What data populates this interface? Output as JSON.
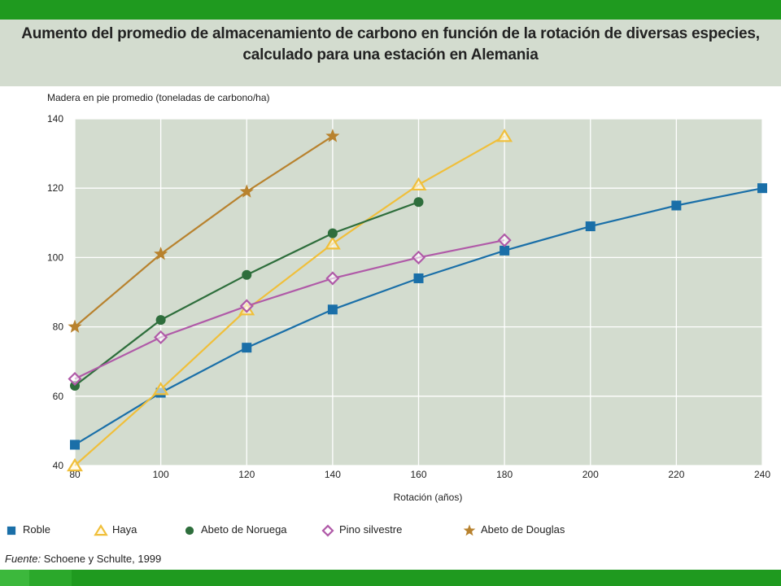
{
  "header": {
    "title_line1": "Aumento del promedio de almacenamiento de carbono en función de la rotación de diversas especies,",
    "title_line2": "calculado para una estación en Alemania"
  },
  "source": {
    "label": "Fuente:",
    "text": "Schoene y Schulte, 1999"
  },
  "chart_data": {
    "type": "line",
    "ylabel": "Madera en pie promedio (toneladas de carbono/ha)",
    "xlabel": "Rotación (años)",
    "xlim": [
      80,
      240
    ],
    "ylim": [
      40,
      140
    ],
    "xticks": [
      80,
      100,
      120,
      140,
      160,
      180,
      200,
      220,
      240
    ],
    "yticks": [
      40,
      60,
      80,
      100,
      120,
      140
    ],
    "grid": true,
    "legend_position": "bottom",
    "series": [
      {
        "name": "Roble",
        "color": "#1a6fa8",
        "marker": "square",
        "x": [
          80,
          100,
          120,
          140,
          160,
          180,
          200,
          220,
          240
        ],
        "y": [
          46,
          61,
          74,
          85,
          94,
          102,
          109,
          115,
          120
        ]
      },
      {
        "name": "Haya",
        "color": "#f0bf3a",
        "marker": "triangle",
        "x": [
          80,
          100,
          120,
          140,
          160,
          180
        ],
        "y": [
          40,
          62,
          85,
          104,
          121,
          135
        ]
      },
      {
        "name": "Abeto de Noruega",
        "color": "#2e6e3c",
        "marker": "circle",
        "x": [
          80,
          100,
          120,
          140,
          160
        ],
        "y": [
          63,
          82,
          95,
          107,
          116
        ]
      },
      {
        "name": "Pino silvestre",
        "color": "#b05aa8",
        "marker": "diamond",
        "x": [
          80,
          100,
          120,
          140,
          160,
          180
        ],
        "y": [
          65,
          77,
          86,
          94,
          100,
          105
        ]
      },
      {
        "name": "Abeto de Douglas",
        "color": "#b8822e",
        "marker": "star",
        "x": [
          80,
          100,
          120,
          140
        ],
        "y": [
          80,
          101,
          119,
          135
        ]
      }
    ]
  },
  "colors": {
    "plot_background": "#d3dccf",
    "grid": "#ffffff",
    "header_bar": "#1f9a1f"
  }
}
